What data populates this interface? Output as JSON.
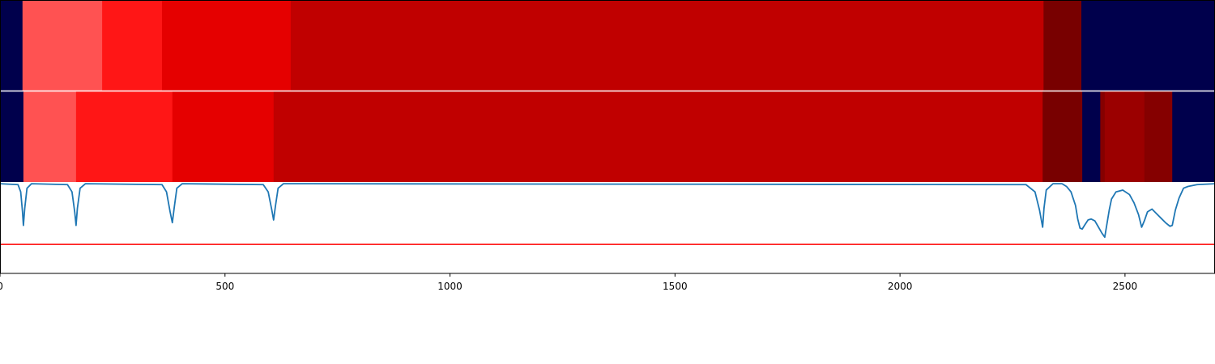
{
  "chart_data": {
    "type": "heatmap",
    "xlim": [
      0,
      2700
    ],
    "x_ticks": [
      0,
      500,
      1000,
      1500,
      2000,
      2500
    ],
    "x_tick_labels": [
      "0",
      "500",
      "1000",
      "1500",
      "2000",
      "2500"
    ],
    "colors": {
      "background_band": "#00004c",
      "light_red": "#ff5252",
      "red": "#ff1616",
      "crimson": "#e50000",
      "dark_red": "#c00000",
      "maroon": "#9b0000",
      "deep_maroon": "#850000",
      "darkest_maroon": "#780000",
      "line": "#1f77b4",
      "threshold": "#ff0000",
      "separator": "#ffffff"
    },
    "rows": [
      {
        "segments": [
          {
            "x0": 0,
            "x1": 50,
            "color": "background_band"
          },
          {
            "x0": 50,
            "x1": 227,
            "color": "light_red"
          },
          {
            "x0": 227,
            "x1": 360,
            "color": "red"
          },
          {
            "x0": 360,
            "x1": 646,
            "color": "crimson"
          },
          {
            "x0": 646,
            "x1": 2319,
            "color": "dark_red"
          },
          {
            "x0": 2319,
            "x1": 2403,
            "color": "darkest_maroon"
          },
          {
            "x0": 2403,
            "x1": 2700,
            "color": "background_band"
          }
        ]
      },
      {
        "segments": [
          {
            "x0": 0,
            "x1": 52,
            "color": "background_band"
          },
          {
            "x0": 52,
            "x1": 169,
            "color": "light_red"
          },
          {
            "x0": 169,
            "x1": 383,
            "color": "red"
          },
          {
            "x0": 383,
            "x1": 608,
            "color": "crimson"
          },
          {
            "x0": 608,
            "x1": 2317,
            "color": "dark_red"
          },
          {
            "x0": 2317,
            "x1": 2405,
            "color": "darkest_maroon"
          },
          {
            "x0": 2405,
            "x1": 2445,
            "color": "background_band"
          },
          {
            "x0": 2445,
            "x1": 2455,
            "color": "deep_maroon"
          },
          {
            "x0": 2455,
            "x1": 2543,
            "color": "maroon"
          },
          {
            "x0": 2543,
            "x1": 2605,
            "color": "deep_maroon"
          },
          {
            "x0": 2605,
            "x1": 2700,
            "color": "background_band"
          }
        ]
      }
    ],
    "line_panel": {
      "ylim": [
        -1,
        0
      ],
      "threshold_y": -0.68,
      "series": {
        "x": [
          0,
          40,
          46,
          50,
          52,
          55,
          60,
          70,
          150,
          160,
          166,
          169,
          172,
          178,
          190,
          360,
          370,
          378,
          383,
          387,
          393,
          405,
          585,
          596,
          604,
          608,
          612,
          618,
          630,
          2280,
          2300,
          2310,
          2317,
          2320,
          2325,
          2340,
          2360,
          2370,
          2380,
          2390,
          2395,
          2400,
          2405,
          2410,
          2418,
          2425,
          2433,
          2440,
          2448,
          2455,
          2460,
          2465,
          2470,
          2480,
          2495,
          2510,
          2520,
          2530,
          2537,
          2543,
          2550,
          2560,
          2570,
          2580,
          2590,
          2600,
          2605,
          2612,
          2620,
          2630,
          2640,
          2660,
          2700
        ],
        "y": [
          -0.01,
          -0.02,
          -0.1,
          -0.32,
          -0.47,
          -0.28,
          -0.06,
          -0.01,
          -0.02,
          -0.1,
          -0.32,
          -0.47,
          -0.28,
          -0.06,
          -0.01,
          -0.02,
          -0.1,
          -0.32,
          -0.44,
          -0.28,
          -0.06,
          -0.01,
          -0.02,
          -0.1,
          -0.3,
          -0.41,
          -0.26,
          -0.06,
          -0.01,
          -0.02,
          -0.1,
          -0.3,
          -0.49,
          -0.28,
          -0.08,
          -0.01,
          -0.01,
          -0.04,
          -0.1,
          -0.25,
          -0.4,
          -0.5,
          -0.51,
          -0.47,
          -0.41,
          -0.4,
          -0.42,
          -0.48,
          -0.55,
          -0.6,
          -0.45,
          -0.3,
          -0.18,
          -0.1,
          -0.08,
          -0.13,
          -0.22,
          -0.35,
          -0.49,
          -0.42,
          -0.32,
          -0.29,
          -0.34,
          -0.39,
          -0.44,
          -0.48,
          -0.47,
          -0.3,
          -0.17,
          -0.06,
          -0.04,
          -0.02,
          -0.01
        ]
      }
    }
  }
}
